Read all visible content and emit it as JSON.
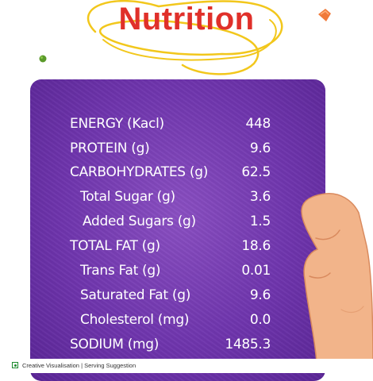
{
  "title": "Nutrition",
  "colors": {
    "title": "#e0302a",
    "card": "#6f35ad",
    "squiggle": "#f2c71c",
    "skin": "#f2b48a"
  },
  "nutrition": [
    {
      "label": "ENERGY (Kacl)",
      "value": "448"
    },
    {
      "label": "PROTEIN (g)",
      "value": "9.6"
    },
    {
      "label": "CARBOHYDRATES (g)",
      "value": "62.5"
    },
    {
      "label": "Total Sugar (g)",
      "value": "3.6"
    },
    {
      "label": "Added  Sugars (g)",
      "value": "1.5"
    },
    {
      "label": "TOTAL FAT (g)",
      "value": "18.6"
    },
    {
      "label": "Trans Fat (g)",
      "value": "0.01"
    },
    {
      "label": "Saturated Fat (g)",
      "value": "9.6"
    },
    {
      "label": "Cholesterol (mg)",
      "value": "0.0"
    },
    {
      "label": "SODIUM (mg)",
      "value": "1485.3"
    }
  ],
  "footer": {
    "text": "Creative Visualisation | Serving Suggestion",
    "veg_icon": "veg-mark-icon"
  }
}
